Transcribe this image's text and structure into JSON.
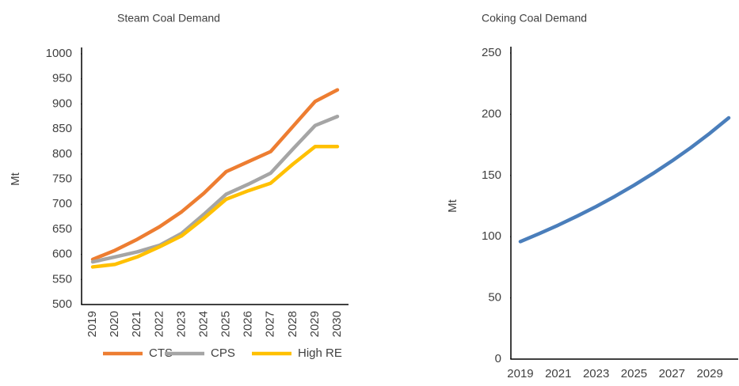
{
  "chart_data": [
    {
      "type": "line",
      "title": "Steam Coal Demand",
      "y_label": "Mt",
      "categories": [
        "2019",
        "2020",
        "2021",
        "2022",
        "2023",
        "2024",
        "2025",
        "2026",
        "2027",
        "2028",
        "2029",
        "2030"
      ],
      "series": [
        {
          "name": "CTS",
          "color": "#ed7d31",
          "values": [
            590,
            608,
            630,
            655,
            685,
            722,
            765,
            785,
            805,
            855,
            905,
            928
          ]
        },
        {
          "name": "CPS",
          "color": "#a5a5a5",
          "values": [
            585,
            595,
            605,
            618,
            642,
            680,
            720,
            740,
            762,
            810,
            857,
            875
          ]
        },
        {
          "name": "High RE",
          "color": "#ffc000",
          "values": [
            575,
            580,
            595,
            615,
            637,
            672,
            710,
            727,
            742,
            780,
            815,
            815
          ]
        }
      ],
      "ylim": [
        500,
        1000
      ],
      "yticks": [
        500,
        550,
        600,
        650,
        700,
        750,
        800,
        850,
        900,
        950,
        1000
      ],
      "x_labels_rotated": true,
      "legend": "bottom"
    },
    {
      "type": "line",
      "title": "Coking Coal Demand",
      "y_label": "Mt",
      "categories": [
        "2019",
        null,
        "2021",
        null,
        "2023",
        null,
        "2025",
        null,
        "2027",
        null,
        "2029",
        null
      ],
      "color": "#4a7ebb",
      "values": [
        96,
        102.5,
        109.4,
        116.8,
        124.6,
        133,
        142,
        151.6,
        161.8,
        172.7,
        184.4,
        197
      ],
      "ylim": [
        0,
        250
      ],
      "yticks": [
        0,
        50,
        100,
        150,
        200,
        250
      ],
      "x_labels_rotated": false
    }
  ]
}
